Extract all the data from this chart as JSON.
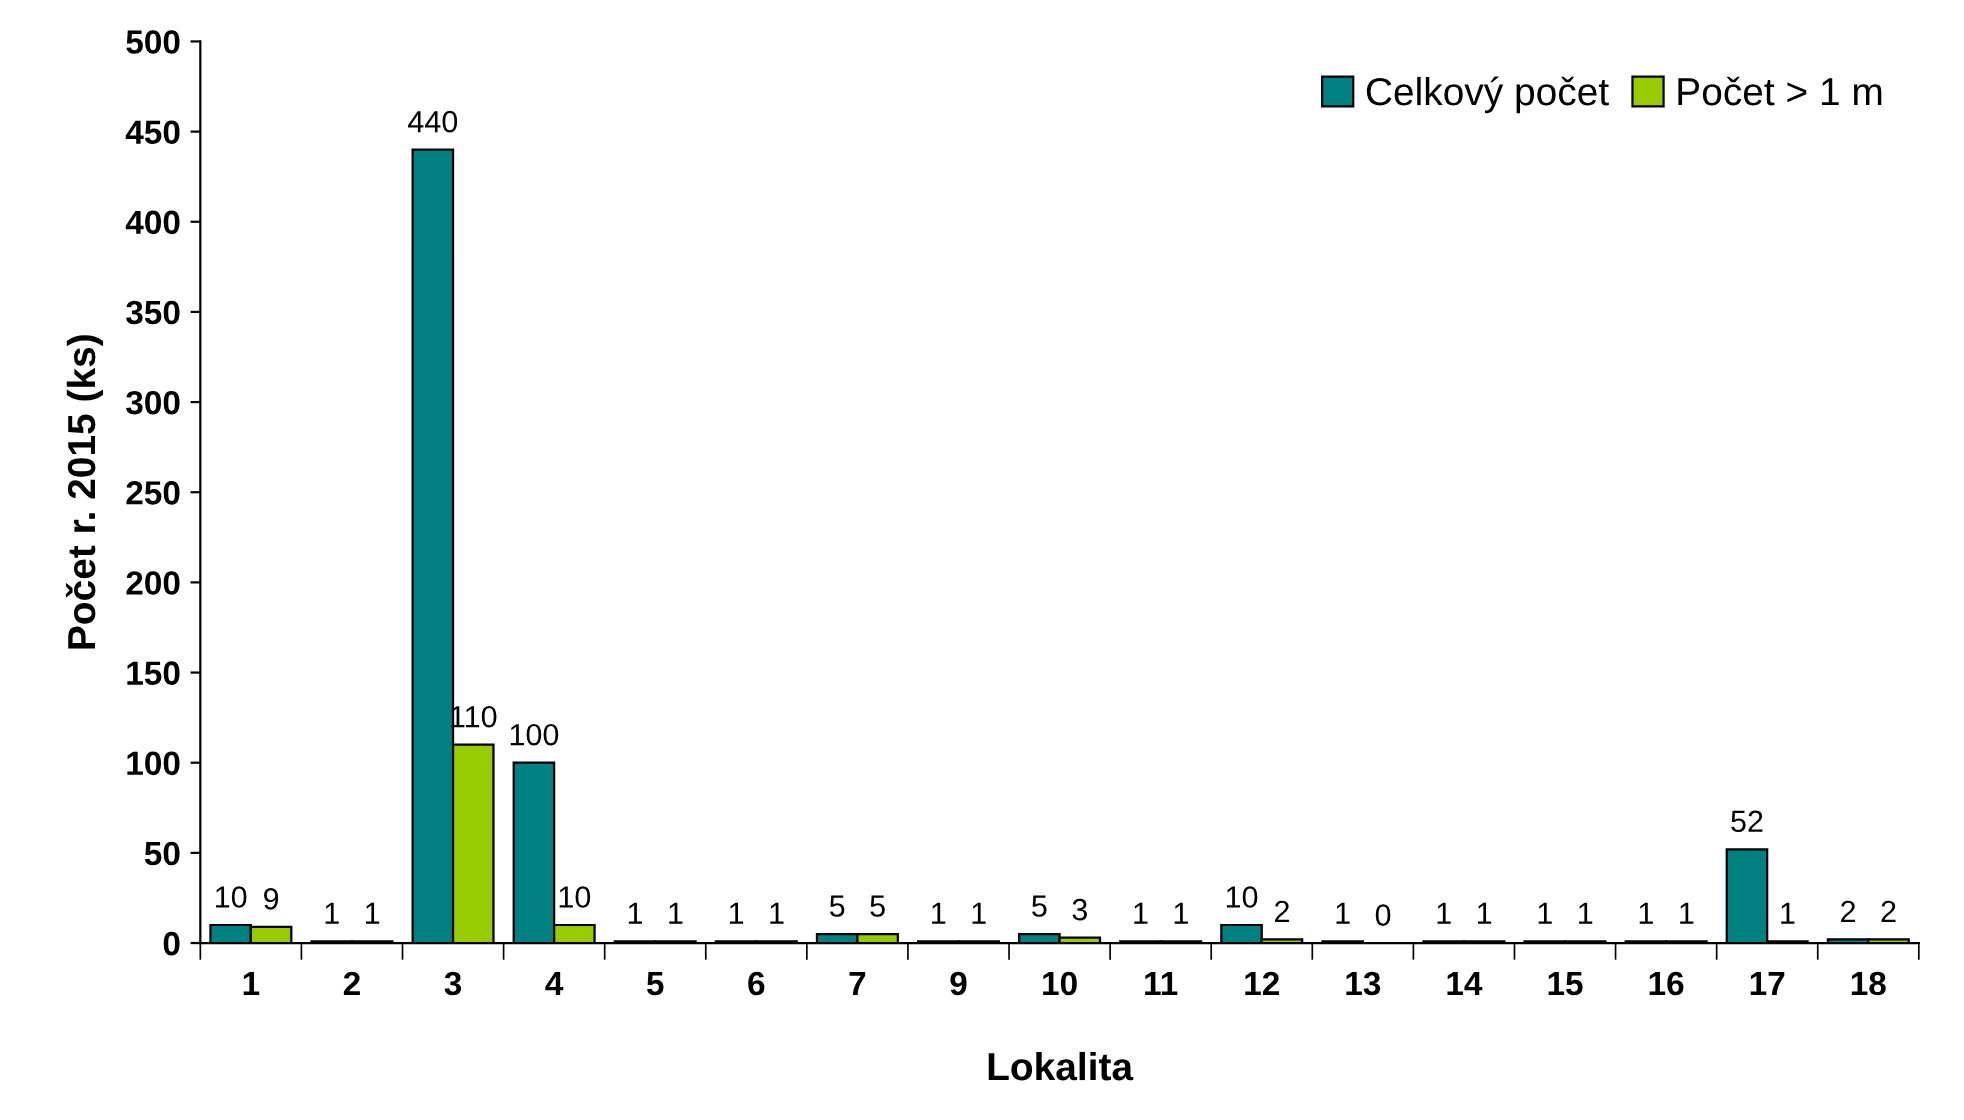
{
  "chart_data": {
    "type": "bar",
    "xlabel": "Lokalita",
    "ylabel": "Počet r. 2015 (ks)",
    "categories": [
      "1",
      "2",
      "3",
      "4",
      "5",
      "6",
      "7",
      "9",
      "10",
      "11",
      "12",
      "13",
      "14",
      "15",
      "16",
      "17",
      "18"
    ],
    "series": [
      {
        "name": "Celkový počet",
        "color": "#008080",
        "values": [
          10,
          1,
          440,
          100,
          1,
          1,
          5,
          1,
          5,
          1,
          10,
          1,
          1,
          1,
          1,
          52,
          2
        ]
      },
      {
        "name": "Počet > 1 m",
        "color": "#99cc00",
        "values": [
          9,
          1,
          110,
          10,
          1,
          1,
          5,
          1,
          3,
          1,
          2,
          0,
          1,
          1,
          1,
          1,
          2
        ]
      }
    ],
    "ylim": [
      0,
      500
    ],
    "yticks": [
      0,
      50,
      100,
      150,
      200,
      250,
      300,
      350,
      400,
      450,
      500
    ],
    "data_labels": true,
    "legend": "top right",
    "grid": false
  }
}
